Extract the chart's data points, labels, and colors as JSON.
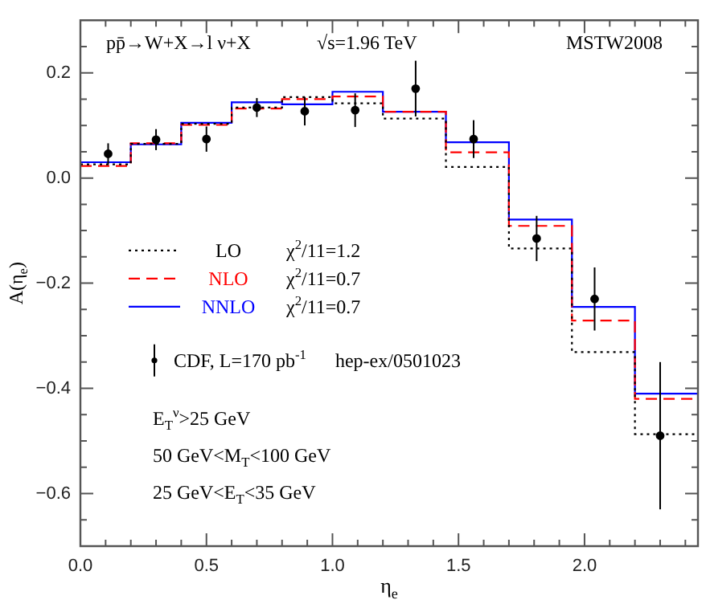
{
  "chart_data": {
    "type": "step",
    "xlabel": "η$_{e}$",
    "ylabel": "A(η$_{e}$)",
    "xlim": [
      0,
      2.45
    ],
    "ylim": [
      -0.7,
      0.3
    ],
    "xticks": [
      {
        "value": 0,
        "label": "0.0"
      },
      {
        "value": 0.1,
        "label": null
      },
      {
        "value": 0.2,
        "label": null
      },
      {
        "value": 0.3,
        "label": null
      },
      {
        "value": 0.4,
        "label": null
      },
      {
        "value": 0.5,
        "label": "0.5"
      },
      {
        "value": 0.6,
        "label": null
      },
      {
        "value": 0.7,
        "label": null
      },
      {
        "value": 0.8,
        "label": null
      },
      {
        "value": 0.9,
        "label": null
      },
      {
        "value": 1,
        "label": "1.0"
      },
      {
        "value": 1.1,
        "label": null
      },
      {
        "value": 1.2,
        "label": null
      },
      {
        "value": 1.3,
        "label": null
      },
      {
        "value": 1.4,
        "label": null
      },
      {
        "value": 1.5,
        "label": "1.5"
      },
      {
        "value": 1.6,
        "label": null
      },
      {
        "value": 1.7,
        "label": null
      },
      {
        "value": 1.8,
        "label": null
      },
      {
        "value": 1.9,
        "label": null
      },
      {
        "value": 2,
        "label": "2.0"
      },
      {
        "value": 2.1,
        "label": null
      },
      {
        "value": 2.2,
        "label": null
      },
      {
        "value": 2.3,
        "label": null
      },
      {
        "value": 2.4,
        "label": null
      }
    ],
    "yticks": [
      {
        "value": -0.65,
        "label": null
      },
      {
        "value": -0.6,
        "label": "−0.6"
      },
      {
        "value": -0.55,
        "label": null
      },
      {
        "value": -0.5,
        "label": null
      },
      {
        "value": -0.45,
        "label": null
      },
      {
        "value": -0.4,
        "label": "−0.4"
      },
      {
        "value": -0.35,
        "label": null
      },
      {
        "value": -0.3,
        "label": null
      },
      {
        "value": -0.25,
        "label": null
      },
      {
        "value": -0.2,
        "label": "−0.2"
      },
      {
        "value": -0.15,
        "label": null
      },
      {
        "value": -0.1,
        "label": null
      },
      {
        "value": -0.05,
        "label": null
      },
      {
        "value": 0,
        "label": "0.0"
      },
      {
        "value": 0.05,
        "label": null
      },
      {
        "value": 0.1,
        "label": null
      },
      {
        "value": 0.15,
        "label": null
      },
      {
        "value": 0.2,
        "label": "0.2"
      },
      {
        "value": 0.25,
        "label": null
      }
    ],
    "series": [
      {
        "name": "LO",
        "color": "#000000",
        "line_style": "dotted",
        "x": [
          0,
          0.2,
          0.4,
          0.6,
          0.8,
          1.0,
          1.2,
          1.45,
          1.7,
          1.95,
          2.2,
          2.45
        ],
        "values": [
          0.026,
          0.065,
          0.103,
          0.134,
          0.154,
          0.142,
          0.113,
          0.021,
          -0.134,
          -0.331,
          -0.487,
          -0.487
        ]
      },
      {
        "name": "NLO",
        "color": "#ff0000",
        "line_style": "dashed",
        "x": [
          0,
          0.2,
          0.4,
          0.6,
          0.8,
          1.0,
          1.2,
          1.45,
          1.7,
          1.95,
          2.2,
          2.45
        ],
        "values": [
          0.023,
          0.066,
          0.101,
          0.132,
          0.15,
          0.155,
          0.126,
          0.049,
          -0.091,
          -0.271,
          -0.42,
          -0.42
        ]
      },
      {
        "name": "NNLO",
        "color": "#0000ff",
        "line_style": "solid",
        "x": [
          0,
          0.2,
          0.4,
          0.6,
          0.8,
          1.0,
          1.2,
          1.45,
          1.7,
          1.95,
          2.2,
          2.45
        ],
        "values": [
          0.03,
          0.064,
          0.105,
          0.144,
          0.14,
          0.164,
          0.126,
          0.068,
          -0.079,
          -0.245,
          -0.41,
          -0.41
        ]
      },
      {
        "name": "CDF, L=170 pb$^{-1}$",
        "type": "scatter",
        "color": "#000000",
        "marker": "circle",
        "x": [
          0.11,
          0.3,
          0.5,
          0.7,
          0.89,
          1.09,
          1.33,
          1.56,
          1.81,
          2.04,
          2.3
        ],
        "values": [
          0.046,
          0.073,
          0.074,
          0.134,
          0.127,
          0.129,
          0.17,
          0.074,
          -0.115,
          -0.23,
          -0.49
        ],
        "errors": [
          0.02,
          0.02,
          0.024,
          0.018,
          0.027,
          0.032,
          0.053,
          0.036,
          0.043,
          0.06,
          0.14
        ]
      }
    ],
    "legend": "left",
    "annotations": [
      "pp̄→W+X→l ν+X",
      "√s=1.96 TeV",
      "MSTW2008",
      "χ$^{2}$/11=1.2",
      "χ$^{2}$/11=0.7",
      "χ$^{2}$/11=0.7",
      "hep-ex/0501023",
      "E$_{T}$$^{ν}$>25 GeV",
      "50 GeV<M$_{T}$<100 GeV",
      "25 GeV<E$_{T}$<35 GeV"
    ]
  }
}
